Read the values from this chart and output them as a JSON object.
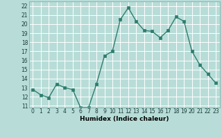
{
  "title": "",
  "x": [
    0,
    1,
    2,
    3,
    4,
    5,
    6,
    7,
    8,
    9,
    10,
    11,
    12,
    13,
    14,
    15,
    16,
    17,
    18,
    19,
    20,
    21,
    22,
    23
  ],
  "y": [
    12.8,
    12.2,
    11.9,
    13.4,
    13.0,
    12.8,
    10.8,
    10.8,
    13.4,
    16.5,
    17.0,
    20.5,
    21.8,
    20.3,
    19.3,
    19.2,
    18.5,
    19.3,
    20.8,
    20.3,
    17.0,
    15.5,
    14.5,
    13.5
  ],
  "xlabel": "Humidex (Indice chaleur)",
  "xlim": [
    -0.5,
    23.5
  ],
  "ylim": [
    10.8,
    22.5
  ],
  "yticks": [
    11,
    12,
    13,
    14,
    15,
    16,
    17,
    18,
    19,
    20,
    21,
    22
  ],
  "xticks": [
    0,
    1,
    2,
    3,
    4,
    5,
    6,
    7,
    8,
    9,
    10,
    11,
    12,
    13,
    14,
    15,
    16,
    17,
    18,
    19,
    20,
    21,
    22,
    23
  ],
  "line_color": "#2e7d6e",
  "marker_color": "#2e7d6e",
  "bg_color": "#b8ddd8",
  "grid_color": "#ffffff",
  "spine_color": "#8abbb5",
  "tick_label_color": "#1a3a36",
  "xlabel_color": "#000000",
  "marker_size": 2.5,
  "line_width": 1.0,
  "tick_fontsize": 5.5,
  "xlabel_fontsize": 6.5
}
